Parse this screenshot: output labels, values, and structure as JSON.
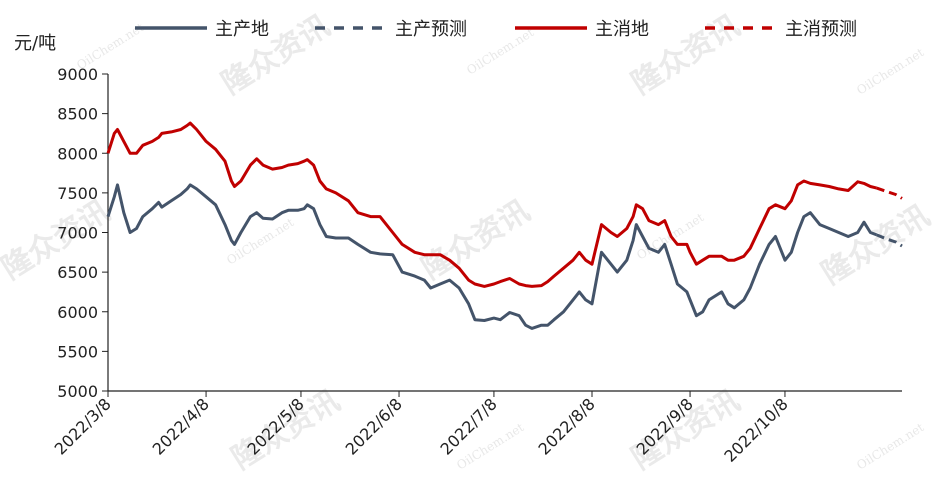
{
  "chart_data": {
    "type": "line",
    "ylabel": "元/吨",
    "ylim": [
      5000,
      9000
    ],
    "yticks": [
      5000,
      5500,
      6000,
      6500,
      7000,
      7500,
      8000,
      8500,
      9000
    ],
    "xlim": [
      "2022-03-08",
      "2022-11-14"
    ],
    "x_ticks": [
      {
        "date": "2022-03-08",
        "label": "2022/3/8"
      },
      {
        "date": "2022-04-08",
        "label": "2022/4/8"
      },
      {
        "date": "2022-05-08",
        "label": "2022/5/8"
      },
      {
        "date": "2022-06-08",
        "label": "2022/6/8"
      },
      {
        "date": "2022-07-08",
        "label": "2022/7/8"
      },
      {
        "date": "2022-08-08",
        "label": "2022/8/8"
      },
      {
        "date": "2022-09-08",
        "label": "2022/9/8"
      },
      {
        "date": "2022-10-08",
        "label": "2022/10/8"
      }
    ],
    "grid": false,
    "legend_position": "top",
    "colors": {
      "production": "#44546a",
      "consumption": "#c00000"
    },
    "series": [
      {
        "name": "主产地",
        "style": "solid",
        "color": "#44546a",
        "points": [
          [
            "2022-03-08",
            7200
          ],
          [
            "2022-03-10",
            7450
          ],
          [
            "2022-03-11",
            7600
          ],
          [
            "2022-03-13",
            7250
          ],
          [
            "2022-03-15",
            7000
          ],
          [
            "2022-03-17",
            7050
          ],
          [
            "2022-03-19",
            7200
          ],
          [
            "2022-03-22",
            7300
          ],
          [
            "2022-03-24",
            7380
          ],
          [
            "2022-03-25",
            7320
          ],
          [
            "2022-03-28",
            7400
          ],
          [
            "2022-03-31",
            7480
          ],
          [
            "2022-04-02",
            7550
          ],
          [
            "2022-04-03",
            7600
          ],
          [
            "2022-04-05",
            7550
          ],
          [
            "2022-04-08",
            7450
          ],
          [
            "2022-04-11",
            7350
          ],
          [
            "2022-04-14",
            7100
          ],
          [
            "2022-04-16",
            6900
          ],
          [
            "2022-04-17",
            6850
          ],
          [
            "2022-04-19",
            7000
          ],
          [
            "2022-04-22",
            7200
          ],
          [
            "2022-04-24",
            7250
          ],
          [
            "2022-04-26",
            7180
          ],
          [
            "2022-04-29",
            7170
          ],
          [
            "2022-05-02",
            7250
          ],
          [
            "2022-05-04",
            7280
          ],
          [
            "2022-05-07",
            7280
          ],
          [
            "2022-05-09",
            7300
          ],
          [
            "2022-05-10",
            7350
          ],
          [
            "2022-05-12",
            7300
          ],
          [
            "2022-05-14",
            7100
          ],
          [
            "2022-05-16",
            6950
          ],
          [
            "2022-05-19",
            6930
          ],
          [
            "2022-05-23",
            6930
          ],
          [
            "2022-05-26",
            6850
          ],
          [
            "2022-05-30",
            6750
          ],
          [
            "2022-06-02",
            6730
          ],
          [
            "2022-06-06",
            6720
          ],
          [
            "2022-06-09",
            6500
          ],
          [
            "2022-06-13",
            6450
          ],
          [
            "2022-06-16",
            6400
          ],
          [
            "2022-06-18",
            6300
          ],
          [
            "2022-06-21",
            6350
          ],
          [
            "2022-06-24",
            6400
          ],
          [
            "2022-06-27",
            6300
          ],
          [
            "2022-06-30",
            6100
          ],
          [
            "2022-07-02",
            5900
          ],
          [
            "2022-07-05",
            5890
          ],
          [
            "2022-07-08",
            5920
          ],
          [
            "2022-07-10",
            5900
          ],
          [
            "2022-07-13",
            5990
          ],
          [
            "2022-07-16",
            5950
          ],
          [
            "2022-07-18",
            5830
          ],
          [
            "2022-07-20",
            5790
          ],
          [
            "2022-07-23",
            5830
          ],
          [
            "2022-07-25",
            5830
          ],
          [
            "2022-07-27",
            5900
          ],
          [
            "2022-07-30",
            6000
          ],
          [
            "2022-08-02",
            6150
          ],
          [
            "2022-08-04",
            6250
          ],
          [
            "2022-08-06",
            6150
          ],
          [
            "2022-08-08",
            6100
          ],
          [
            "2022-08-11",
            6750
          ],
          [
            "2022-08-14",
            6600
          ],
          [
            "2022-08-16",
            6500
          ],
          [
            "2022-08-19",
            6650
          ],
          [
            "2022-08-21",
            6900
          ],
          [
            "2022-08-22",
            7100
          ],
          [
            "2022-08-24",
            6950
          ],
          [
            "2022-08-26",
            6800
          ],
          [
            "2022-08-29",
            6750
          ],
          [
            "2022-08-31",
            6850
          ],
          [
            "2022-09-02",
            6600
          ],
          [
            "2022-09-04",
            6350
          ],
          [
            "2022-09-07",
            6250
          ],
          [
            "2022-09-08",
            6150
          ],
          [
            "2022-09-10",
            5950
          ],
          [
            "2022-09-12",
            6000
          ],
          [
            "2022-09-14",
            6150
          ],
          [
            "2022-09-18",
            6250
          ],
          [
            "2022-09-20",
            6100
          ],
          [
            "2022-09-22",
            6050
          ],
          [
            "2022-09-25",
            6150
          ],
          [
            "2022-09-27",
            6300
          ],
          [
            "2022-09-30",
            6600
          ],
          [
            "2022-10-03",
            6850
          ],
          [
            "2022-10-05",
            6950
          ],
          [
            "2022-10-08",
            6650
          ],
          [
            "2022-10-10",
            6750
          ],
          [
            "2022-10-12",
            7000
          ],
          [
            "2022-10-14",
            7200
          ],
          [
            "2022-10-16",
            7250
          ],
          [
            "2022-10-19",
            7100
          ],
          [
            "2022-10-22",
            7050
          ],
          [
            "2022-10-25",
            7000
          ],
          [
            "2022-10-28",
            6950
          ],
          [
            "2022-10-31",
            7000
          ],
          [
            "2022-11-02",
            7130
          ],
          [
            "2022-11-04",
            7000
          ],
          [
            "2022-11-06",
            6970
          ]
        ]
      },
      {
        "name": "主产预测",
        "style": "dashed",
        "color": "#44546a",
        "points": [
          [
            "2022-11-06",
            6970
          ],
          [
            "2022-11-09",
            6920
          ],
          [
            "2022-11-12",
            6880
          ],
          [
            "2022-11-14",
            6830
          ]
        ]
      },
      {
        "name": "主消地",
        "style": "solid",
        "color": "#c00000",
        "points": [
          [
            "2022-03-08",
            8000
          ],
          [
            "2022-03-10",
            8250
          ],
          [
            "2022-03-11",
            8300
          ],
          [
            "2022-03-13",
            8150
          ],
          [
            "2022-03-15",
            8000
          ],
          [
            "2022-03-17",
            8000
          ],
          [
            "2022-03-19",
            8100
          ],
          [
            "2022-03-22",
            8150
          ],
          [
            "2022-03-24",
            8200
          ],
          [
            "2022-03-25",
            8250
          ],
          [
            "2022-03-28",
            8270
          ],
          [
            "2022-03-31",
            8300
          ],
          [
            "2022-04-02",
            8350
          ],
          [
            "2022-04-03",
            8380
          ],
          [
            "2022-04-05",
            8300
          ],
          [
            "2022-04-08",
            8150
          ],
          [
            "2022-04-11",
            8050
          ],
          [
            "2022-04-14",
            7900
          ],
          [
            "2022-04-16",
            7650
          ],
          [
            "2022-04-17",
            7580
          ],
          [
            "2022-04-19",
            7650
          ],
          [
            "2022-04-22",
            7850
          ],
          [
            "2022-04-24",
            7930
          ],
          [
            "2022-04-26",
            7850
          ],
          [
            "2022-04-29",
            7800
          ],
          [
            "2022-05-02",
            7820
          ],
          [
            "2022-05-04",
            7850
          ],
          [
            "2022-05-07",
            7870
          ],
          [
            "2022-05-09",
            7900
          ],
          [
            "2022-05-10",
            7920
          ],
          [
            "2022-05-12",
            7850
          ],
          [
            "2022-05-14",
            7650
          ],
          [
            "2022-05-16",
            7550
          ],
          [
            "2022-05-19",
            7500
          ],
          [
            "2022-05-23",
            7400
          ],
          [
            "2022-05-26",
            7250
          ],
          [
            "2022-05-30",
            7200
          ],
          [
            "2022-06-02",
            7200
          ],
          [
            "2022-06-06",
            7000
          ],
          [
            "2022-06-09",
            6850
          ],
          [
            "2022-06-13",
            6750
          ],
          [
            "2022-06-16",
            6720
          ],
          [
            "2022-06-18",
            6720
          ],
          [
            "2022-06-21",
            6720
          ],
          [
            "2022-06-24",
            6650
          ],
          [
            "2022-06-27",
            6550
          ],
          [
            "2022-06-30",
            6400
          ],
          [
            "2022-07-02",
            6350
          ],
          [
            "2022-07-05",
            6320
          ],
          [
            "2022-07-08",
            6350
          ],
          [
            "2022-07-10",
            6380
          ],
          [
            "2022-07-13",
            6420
          ],
          [
            "2022-07-16",
            6350
          ],
          [
            "2022-07-18",
            6330
          ],
          [
            "2022-07-20",
            6320
          ],
          [
            "2022-07-23",
            6330
          ],
          [
            "2022-07-25",
            6380
          ],
          [
            "2022-07-27",
            6450
          ],
          [
            "2022-07-30",
            6550
          ],
          [
            "2022-08-02",
            6650
          ],
          [
            "2022-08-04",
            6750
          ],
          [
            "2022-08-06",
            6650
          ],
          [
            "2022-08-08",
            6600
          ],
          [
            "2022-08-11",
            7100
          ],
          [
            "2022-08-14",
            7000
          ],
          [
            "2022-08-16",
            6950
          ],
          [
            "2022-08-19",
            7050
          ],
          [
            "2022-08-21",
            7200
          ],
          [
            "2022-08-22",
            7350
          ],
          [
            "2022-08-24",
            7300
          ],
          [
            "2022-08-26",
            7150
          ],
          [
            "2022-08-29",
            7100
          ],
          [
            "2022-08-31",
            7150
          ],
          [
            "2022-09-02",
            6950
          ],
          [
            "2022-09-04",
            6850
          ],
          [
            "2022-09-07",
            6850
          ],
          [
            "2022-09-08",
            6750
          ],
          [
            "2022-09-10",
            6600
          ],
          [
            "2022-09-12",
            6650
          ],
          [
            "2022-09-14",
            6700
          ],
          [
            "2022-09-18",
            6700
          ],
          [
            "2022-09-20",
            6650
          ],
          [
            "2022-09-22",
            6650
          ],
          [
            "2022-09-25",
            6700
          ],
          [
            "2022-09-27",
            6800
          ],
          [
            "2022-09-30",
            7050
          ],
          [
            "2022-10-03",
            7300
          ],
          [
            "2022-10-05",
            7350
          ],
          [
            "2022-10-08",
            7300
          ],
          [
            "2022-10-10",
            7400
          ],
          [
            "2022-10-12",
            7600
          ],
          [
            "2022-10-14",
            7650
          ],
          [
            "2022-10-16",
            7620
          ],
          [
            "2022-10-19",
            7600
          ],
          [
            "2022-10-22",
            7580
          ],
          [
            "2022-10-25",
            7550
          ],
          [
            "2022-10-28",
            7530
          ],
          [
            "2022-10-31",
            7640
          ],
          [
            "2022-11-02",
            7620
          ],
          [
            "2022-11-04",
            7580
          ],
          [
            "2022-11-06",
            7560
          ]
        ]
      },
      {
        "name": "主消预测",
        "style": "dashed",
        "color": "#c00000",
        "points": [
          [
            "2022-11-06",
            7560
          ],
          [
            "2022-11-09",
            7520
          ],
          [
            "2022-11-12",
            7480
          ],
          [
            "2022-11-14",
            7430
          ]
        ]
      }
    ]
  },
  "watermark": {
    "brand": "隆众资讯",
    "site": "OilChem.net"
  }
}
